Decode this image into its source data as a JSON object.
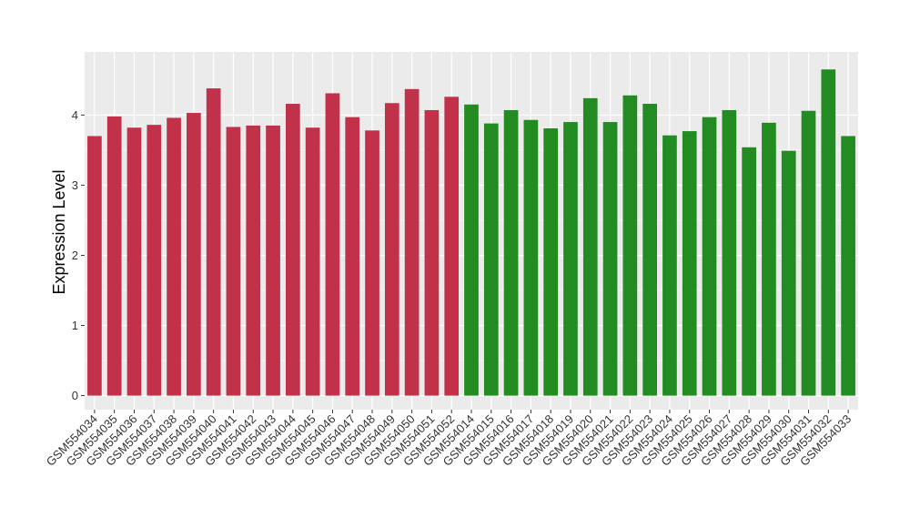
{
  "chart_data": {
    "type": "bar",
    "title": "",
    "xlabel": "",
    "ylabel": "Expression Level",
    "ylim": [
      -0.2,
      4.9
    ],
    "yticks": [
      0,
      1,
      2,
      3,
      4
    ],
    "grid": true,
    "colors": {
      "group_1": "#C1314A",
      "group_2": "#228B22",
      "panel": "#EBEBEB",
      "gridline": "#FFFFFF"
    },
    "categories": [
      "GSM554034",
      "GSM554035",
      "GSM554036",
      "GSM554037",
      "GSM554038",
      "GSM554039",
      "GSM554040",
      "GSM554041",
      "GSM554042",
      "GSM554043",
      "GSM554044",
      "GSM554045",
      "GSM554046",
      "GSM554047",
      "GSM554048",
      "GSM554049",
      "GSM554050",
      "GSM554051",
      "GSM554052",
      "GSM554014",
      "GSM554015",
      "GSM554016",
      "GSM554017",
      "GSM554018",
      "GSM554019",
      "GSM554020",
      "GSM554021",
      "GSM554022",
      "GSM554023",
      "GSM554024",
      "GSM554025",
      "GSM554026",
      "GSM554027",
      "GSM554028",
      "GSM554029",
      "GSM554030",
      "GSM554031",
      "GSM554032",
      "GSM554033"
    ],
    "values": [
      3.7,
      3.98,
      3.82,
      3.86,
      3.96,
      4.03,
      4.38,
      3.83,
      3.85,
      3.85,
      4.16,
      3.82,
      4.31,
      3.97,
      3.78,
      4.17,
      4.37,
      4.07,
      4.26,
      4.15,
      3.88,
      4.07,
      3.93,
      3.81,
      3.9,
      4.24,
      3.9,
      4.28,
      4.16,
      3.71,
      3.77,
      3.97,
      4.07,
      3.54,
      3.89,
      3.49,
      4.06,
      4.65,
      3.7
    ],
    "groups": [
      "group_1",
      "group_1",
      "group_1",
      "group_1",
      "group_1",
      "group_1",
      "group_1",
      "group_1",
      "group_1",
      "group_1",
      "group_1",
      "group_1",
      "group_1",
      "group_1",
      "group_1",
      "group_1",
      "group_1",
      "group_1",
      "group_1",
      "group_2",
      "group_2",
      "group_2",
      "group_2",
      "group_2",
      "group_2",
      "group_2",
      "group_2",
      "group_2",
      "group_2",
      "group_2",
      "group_2",
      "group_2",
      "group_2",
      "group_2",
      "group_2",
      "group_2",
      "group_2",
      "group_2",
      "group_2"
    ]
  }
}
